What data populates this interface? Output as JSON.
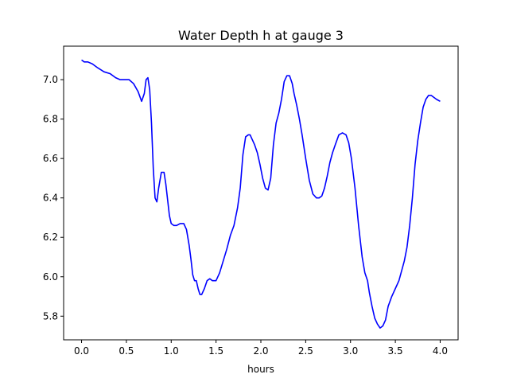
{
  "chart_data": {
    "type": "line",
    "title": "Water Depth h at gauge 3",
    "xlabel": "hours",
    "ylabel": "",
    "xlim": [
      -0.2,
      4.2
    ],
    "ylim": [
      5.68,
      7.17
    ],
    "xticks": [
      0.0,
      0.5,
      1.0,
      1.5,
      2.0,
      2.5,
      3.0,
      3.5,
      4.0
    ],
    "xtick_labels": [
      "0.0",
      "0.5",
      "1.0",
      "1.5",
      "2.0",
      "2.5",
      "3.0",
      "3.5",
      "4.0"
    ],
    "yticks": [
      5.8,
      6.0,
      6.2,
      6.4,
      6.6,
      6.8,
      7.0
    ],
    "ytick_labels": [
      "5.8",
      "6.0",
      "6.2",
      "6.4",
      "6.6",
      "6.8",
      "7.0"
    ],
    "grid": false,
    "legend": "none",
    "series": [
      {
        "color": "#0000ff",
        "x": [
          0.0,
          0.03,
          0.07,
          0.12,
          0.18,
          0.25,
          0.32,
          0.38,
          0.43,
          0.48,
          0.53,
          0.58,
          0.63,
          0.67,
          0.7,
          0.72,
          0.74,
          0.76,
          0.78,
          0.8,
          0.82,
          0.84,
          0.86,
          0.89,
          0.92,
          0.94,
          0.96,
          0.98,
          1.0,
          1.03,
          1.06,
          1.1,
          1.14,
          1.17,
          1.2,
          1.22,
          1.24,
          1.26,
          1.28,
          1.3,
          1.32,
          1.34,
          1.37,
          1.4,
          1.43,
          1.46,
          1.5,
          1.54,
          1.58,
          1.62,
          1.66,
          1.7,
          1.74,
          1.77,
          1.8,
          1.83,
          1.86,
          1.88,
          1.9,
          1.93,
          1.96,
          1.99,
          2.02,
          2.05,
          2.08,
          2.11,
          2.14,
          2.17,
          2.2,
          2.23,
          2.26,
          2.29,
          2.32,
          2.35,
          2.37,
          2.4,
          2.43,
          2.46,
          2.5,
          2.54,
          2.58,
          2.62,
          2.65,
          2.68,
          2.71,
          2.74,
          2.77,
          2.8,
          2.83,
          2.87,
          2.91,
          2.95,
          2.98,
          3.01,
          3.05,
          3.09,
          3.13,
          3.16,
          3.19,
          3.21,
          3.24,
          3.27,
          3.3,
          3.33,
          3.36,
          3.39,
          3.42,
          3.46,
          3.5,
          3.54,
          3.57,
          3.6,
          3.63,
          3.66,
          3.69,
          3.72,
          3.75,
          3.78,
          3.81,
          3.84,
          3.87,
          3.9,
          3.93,
          3.96,
          4.0
        ],
        "y": [
          7.1,
          7.09,
          7.09,
          7.08,
          7.06,
          7.04,
          7.03,
          7.01,
          7.0,
          7.0,
          7.0,
          6.98,
          6.94,
          6.89,
          6.93,
          7.0,
          7.01,
          6.95,
          6.78,
          6.55,
          6.4,
          6.38,
          6.45,
          6.53,
          6.53,
          6.47,
          6.39,
          6.31,
          6.27,
          6.26,
          6.26,
          6.27,
          6.27,
          6.24,
          6.16,
          6.09,
          6.01,
          5.98,
          5.98,
          5.94,
          5.91,
          5.91,
          5.94,
          5.98,
          5.99,
          5.98,
          5.98,
          6.02,
          6.08,
          6.14,
          6.21,
          6.26,
          6.35,
          6.45,
          6.62,
          6.71,
          6.72,
          6.72,
          6.7,
          6.67,
          6.63,
          6.57,
          6.5,
          6.45,
          6.44,
          6.5,
          6.67,
          6.78,
          6.83,
          6.9,
          6.99,
          7.02,
          7.02,
          6.98,
          6.93,
          6.87,
          6.8,
          6.72,
          6.6,
          6.49,
          6.42,
          6.4,
          6.4,
          6.41,
          6.45,
          6.51,
          6.58,
          6.63,
          6.67,
          6.72,
          6.73,
          6.72,
          6.68,
          6.6,
          6.45,
          6.26,
          6.1,
          6.02,
          5.98,
          5.92,
          5.85,
          5.79,
          5.76,
          5.74,
          5.75,
          5.78,
          5.85,
          5.9,
          5.94,
          5.98,
          6.03,
          6.08,
          6.15,
          6.26,
          6.4,
          6.57,
          6.69,
          6.78,
          6.86,
          6.9,
          6.92,
          6.92,
          6.91,
          6.9,
          6.89
        ]
      }
    ]
  }
}
